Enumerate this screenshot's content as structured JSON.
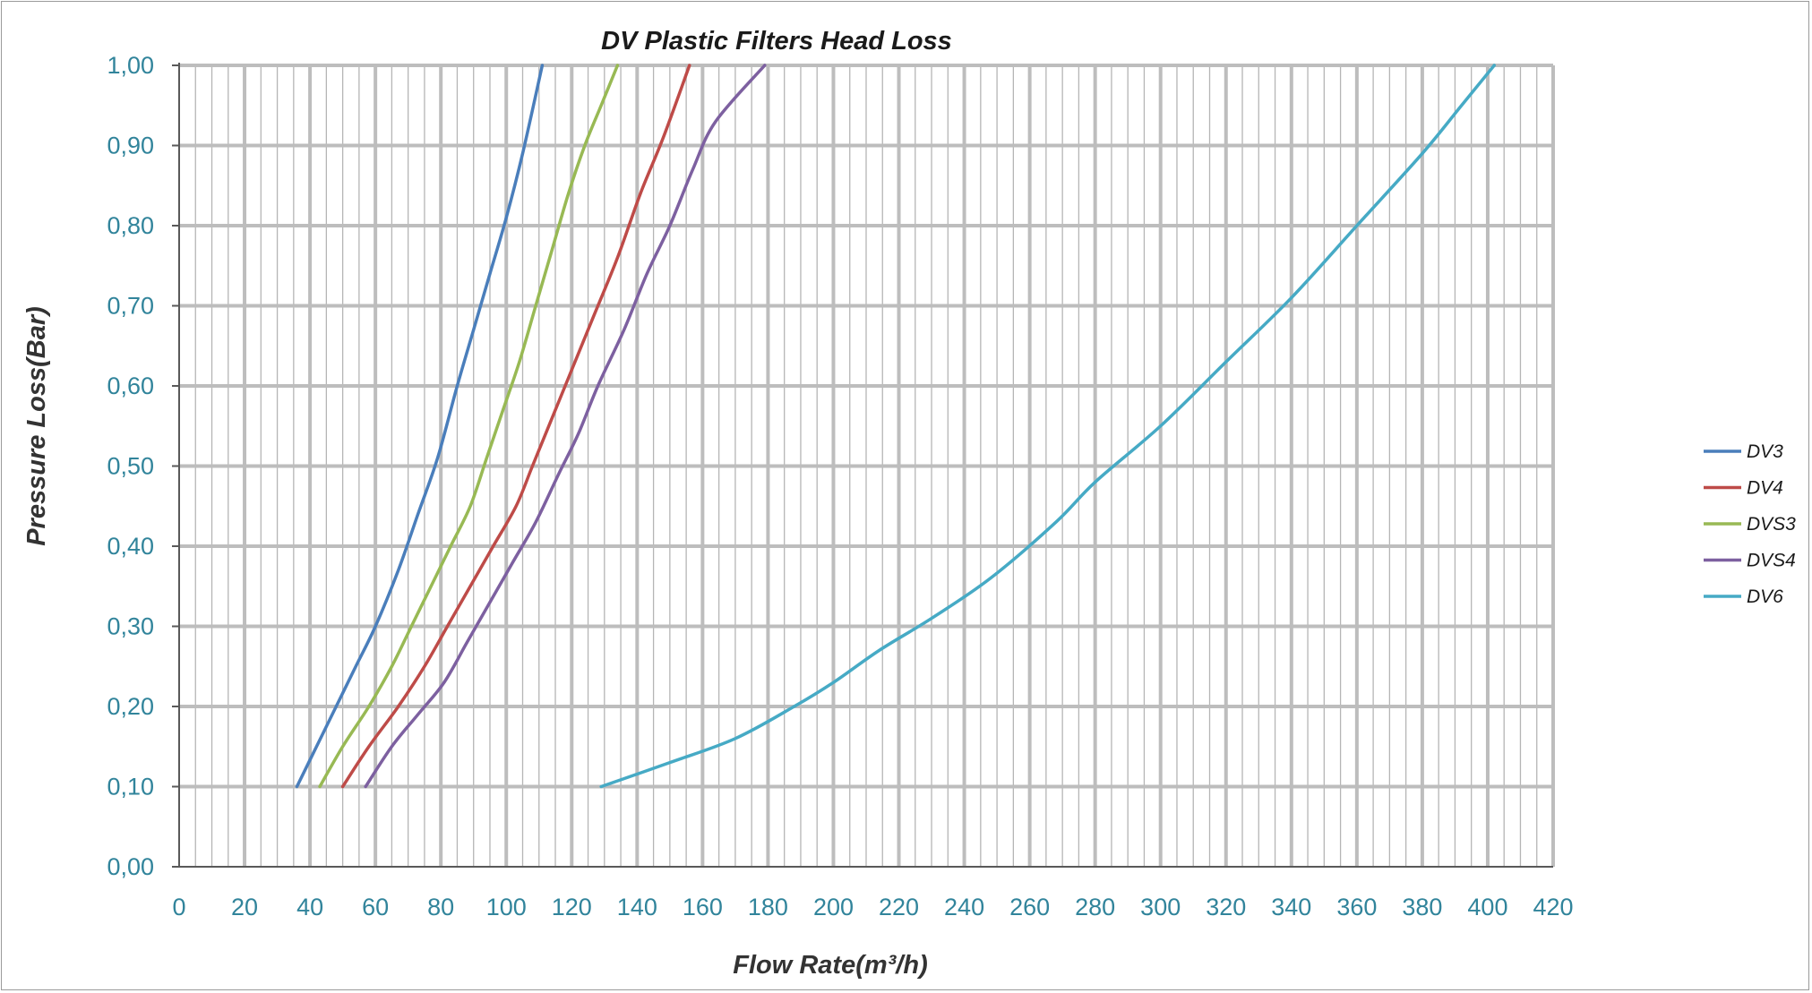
{
  "chart_data": {
    "type": "line",
    "title": "DV Plastic Filters Head Loss",
    "xlabel": "Flow Rate(m³/h)",
    "ylabel": "Pressure Loss(Bar)",
    "xlim": [
      0,
      420
    ],
    "ylim": [
      0,
      1.0
    ],
    "x_ticks": [
      "0",
      "20",
      "40",
      "60",
      "80",
      "100",
      "120",
      "140",
      "160",
      "180",
      "200",
      "220",
      "240",
      "260",
      "280",
      "300",
      "320",
      "340",
      "360",
      "380",
      "400",
      "420"
    ],
    "y_ticks": [
      "0,00",
      "0,10",
      "0,20",
      "0,30",
      "0,40",
      "0,50",
      "0,60",
      "0,70",
      "0,80",
      "0,90",
      "1,00"
    ],
    "x_major_step": 20,
    "x_minor_step": 5,
    "grid": true,
    "legend_position": "right",
    "series": [
      {
        "name": "DV3",
        "color": "#4A7EBB",
        "points": [
          [
            36,
            0.1
          ],
          [
            42,
            0.15
          ],
          [
            48,
            0.2
          ],
          [
            54,
            0.25
          ],
          [
            60,
            0.3
          ],
          [
            67,
            0.37
          ],
          [
            73,
            0.44
          ],
          [
            79,
            0.51
          ],
          [
            85,
            0.6
          ],
          [
            90,
            0.67
          ],
          [
            95,
            0.74
          ],
          [
            100,
            0.81
          ],
          [
            105,
            0.89
          ],
          [
            111,
            1.0
          ]
        ]
      },
      {
        "name": "DV4",
        "color": "#BE4B48",
        "points": [
          [
            50,
            0.1
          ],
          [
            58,
            0.15
          ],
          [
            67,
            0.2
          ],
          [
            75,
            0.25
          ],
          [
            82,
            0.3
          ],
          [
            89,
            0.35
          ],
          [
            96,
            0.4
          ],
          [
            103,
            0.45
          ],
          [
            108,
            0.5
          ],
          [
            114,
            0.56
          ],
          [
            120,
            0.62
          ],
          [
            127,
            0.69
          ],
          [
            134,
            0.76
          ],
          [
            141,
            0.84
          ],
          [
            148,
            0.91
          ],
          [
            156,
            1.0
          ]
        ]
      },
      {
        "name": "DVS3",
        "color": "#98B954",
        "points": [
          [
            43,
            0.1
          ],
          [
            50,
            0.15
          ],
          [
            58,
            0.2
          ],
          [
            65,
            0.25
          ],
          [
            71,
            0.3
          ],
          [
            77,
            0.35
          ],
          [
            83,
            0.4
          ],
          [
            89,
            0.45
          ],
          [
            94,
            0.51
          ],
          [
            99,
            0.57
          ],
          [
            104,
            0.63
          ],
          [
            109,
            0.7
          ],
          [
            114,
            0.77
          ],
          [
            119,
            0.84
          ],
          [
            124,
            0.9
          ],
          [
            129,
            0.95
          ],
          [
            134,
            1.0
          ]
        ]
      },
      {
        "name": "DVS4",
        "color": "#7D60A0",
        "points": [
          [
            57,
            0.1
          ],
          [
            65,
            0.15
          ],
          [
            73,
            0.19
          ],
          [
            81,
            0.23
          ],
          [
            88,
            0.28
          ],
          [
            95,
            0.33
          ],
          [
            102,
            0.38
          ],
          [
            109,
            0.43
          ],
          [
            116,
            0.49
          ],
          [
            122,
            0.54
          ],
          [
            128,
            0.6
          ],
          [
            136,
            0.67
          ],
          [
            143,
            0.74
          ],
          [
            150,
            0.8
          ],
          [
            157,
            0.87
          ],
          [
            164,
            0.93
          ],
          [
            179,
            1.0
          ]
        ]
      },
      {
        "name": "DV6",
        "color": "#46AAC5",
        "points": [
          [
            129,
            0.1
          ],
          [
            150,
            0.13
          ],
          [
            170,
            0.16
          ],
          [
            188,
            0.2
          ],
          [
            200,
            0.23
          ],
          [
            214,
            0.27
          ],
          [
            230,
            0.31
          ],
          [
            248,
            0.36
          ],
          [
            268,
            0.43
          ],
          [
            280,
            0.48
          ],
          [
            300,
            0.55
          ],
          [
            320,
            0.63
          ],
          [
            340,
            0.71
          ],
          [
            360,
            0.8
          ],
          [
            380,
            0.89
          ],
          [
            392,
            0.95
          ],
          [
            402,
            1.0
          ]
        ]
      }
    ]
  }
}
